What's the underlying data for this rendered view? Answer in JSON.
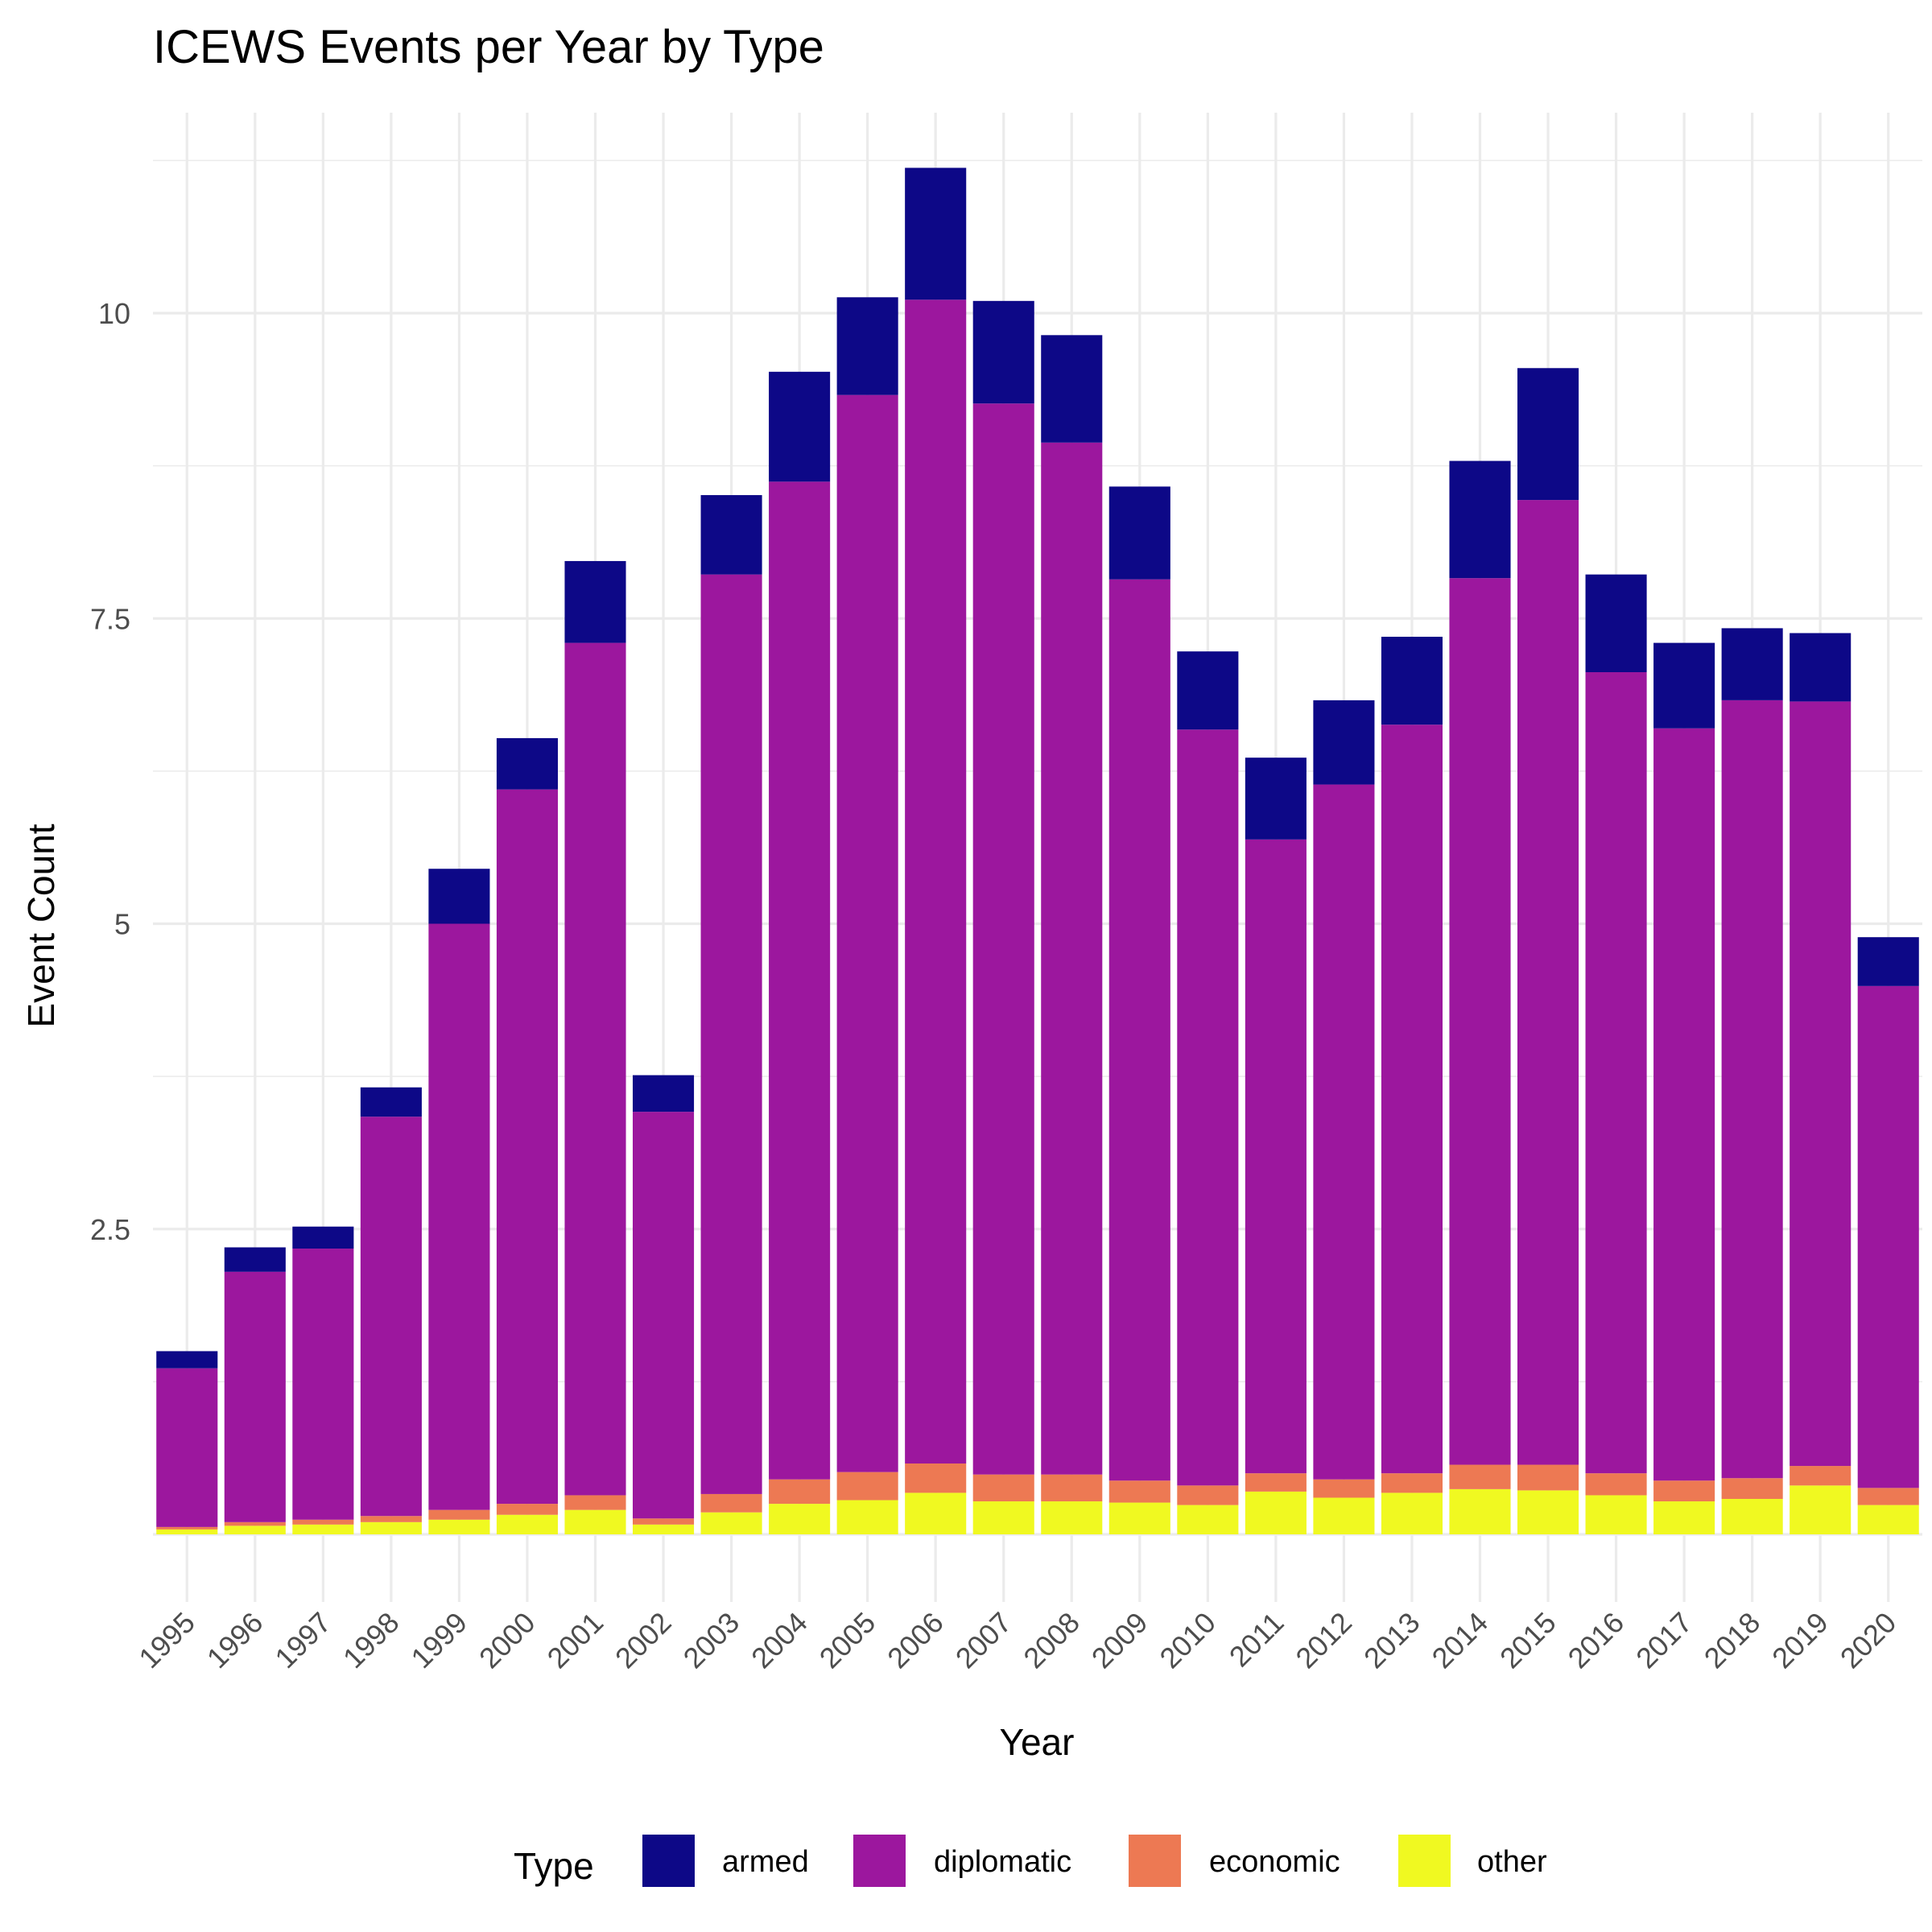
{
  "chart_data": {
    "type": "bar",
    "stacked": true,
    "title": "ICEWS Events per Year by Type",
    "xlabel": "Year",
    "ylabel": "Event Count",
    "ylim": [
      0,
      11.5
    ],
    "yticks": [
      2.5,
      5,
      7.5,
      10
    ],
    "ytick_labels": [
      "2.5",
      "5",
      "7.5",
      "10"
    ],
    "grid": true,
    "legend": {
      "title": "Type",
      "position": "bottom"
    },
    "categories": [
      "1995",
      "1996",
      "1997",
      "1998",
      "1999",
      "2000",
      "2001",
      "2002",
      "2003",
      "2004",
      "2005",
      "2006",
      "2007",
      "2008",
      "2009",
      "2010",
      "2011",
      "2012",
      "2013",
      "2014",
      "2015",
      "2016",
      "2017",
      "2018",
      "2019",
      "2020"
    ],
    "series": [
      {
        "name": "other",
        "color": "#F0F921",
        "values": [
          0.04,
          0.07,
          0.08,
          0.1,
          0.12,
          0.16,
          0.2,
          0.08,
          0.18,
          0.25,
          0.28,
          0.34,
          0.27,
          0.27,
          0.26,
          0.24,
          0.35,
          0.3,
          0.34,
          0.37,
          0.36,
          0.32,
          0.27,
          0.29,
          0.4,
          0.24
        ]
      },
      {
        "name": "economic",
        "color": "#ED7953",
        "values": [
          0.02,
          0.03,
          0.04,
          0.05,
          0.08,
          0.09,
          0.12,
          0.05,
          0.15,
          0.2,
          0.23,
          0.24,
          0.22,
          0.22,
          0.18,
          0.16,
          0.15,
          0.15,
          0.16,
          0.2,
          0.21,
          0.18,
          0.17,
          0.17,
          0.16,
          0.14
        ]
      },
      {
        "name": "diplomatic",
        "color": "#9C179E",
        "values": [
          1.3,
          2.05,
          2.22,
          3.27,
          4.8,
          5.85,
          6.98,
          3.33,
          7.53,
          8.17,
          8.82,
          9.53,
          8.77,
          8.45,
          7.38,
          6.19,
          5.19,
          5.69,
          6.13,
          7.26,
          7.9,
          6.56,
          6.16,
          6.37,
          6.26,
          4.11
        ]
      },
      {
        "name": "armed",
        "color": "#0D0887",
        "values": [
          0.14,
          0.2,
          0.18,
          0.24,
          0.45,
          0.42,
          0.67,
          0.3,
          0.65,
          0.9,
          0.8,
          1.08,
          0.84,
          0.88,
          0.76,
          0.64,
          0.67,
          0.69,
          0.72,
          0.96,
          1.08,
          0.8,
          0.7,
          0.59,
          0.56,
          0.4
        ]
      }
    ]
  }
}
